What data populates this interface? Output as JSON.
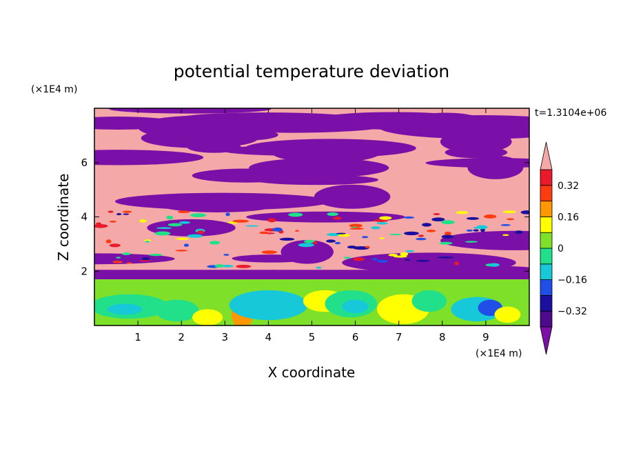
{
  "chart_data": {
    "type": "heatmap",
    "title": "potential temperature deviation",
    "xlabel": "X coordinate",
    "ylabel": "Z coordinate",
    "x_unit": "(×1E4 m)",
    "y_unit": "(×1E4 m)",
    "time_label": "t=1.3104e+06",
    "xlim": [
      0,
      10
    ],
    "ylim": [
      0,
      8
    ],
    "x_ticks": [
      "1",
      "2",
      "3",
      "4",
      "5",
      "6",
      "7",
      "8",
      "9"
    ],
    "y_ticks": [
      "2",
      "4",
      "6"
    ],
    "colorbar": {
      "levels": [
        -0.4,
        -0.32,
        -0.24,
        -0.16,
        -0.08,
        0,
        0.08,
        0.16,
        0.24,
        0.32,
        0.4
      ],
      "labels": [
        "0.32",
        "0.16",
        "0",
        "−0.16",
        "−0.32"
      ],
      "label_values": [
        0.32,
        0.16,
        0,
        -0.16,
        -0.32
      ],
      "colors_bottom_to_top": [
        "#4d0a8c",
        "#1a0f9e",
        "#1f4fe6",
        "#16c8d8",
        "#22e08a",
        "#7fe02a",
        "#ffff00",
        "#ff9800",
        "#ff3b10",
        "#e81a2c"
      ],
      "over_color": "#f4a8a8",
      "under_color": "#7a10a8"
    },
    "layers": [
      {
        "region": "upper stratified layer",
        "z_range": [
          1.9,
          8
        ],
        "dominant_colors": [
          "#f4a8a8",
          "#7a10a8"
        ]
      },
      {
        "region": "boundary layer with convective eddies",
        "z_range": [
          0,
          1.9
        ],
        "dominant_colors": [
          "#7fe02a",
          "#22e08a",
          "#16c8d8",
          "#ffff00"
        ]
      }
    ]
  }
}
